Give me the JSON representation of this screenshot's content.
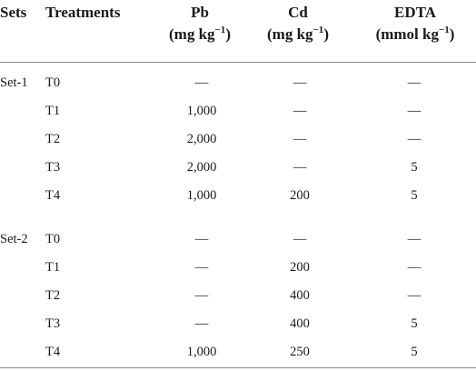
{
  "headers": {
    "sets": "Sets",
    "treatments": "Treatments",
    "pb": {
      "name": "Pb",
      "unit": "(mg kg",
      "exp": "−1",
      "close": ")"
    },
    "cd": {
      "name": "Cd",
      "unit": "(mg kg",
      "exp": "−1",
      "close": ")"
    },
    "edta": {
      "name": "EDTA",
      "unit": "(mmol kg",
      "exp": "−1",
      "close": ")"
    }
  },
  "groups": [
    {
      "set": "Set-1",
      "rows": [
        {
          "treatment": "T0",
          "pb": "—",
          "cd": "—",
          "edta": "—"
        },
        {
          "treatment": "T1",
          "pb": "1,000",
          "cd": "—",
          "edta": "—"
        },
        {
          "treatment": "T2",
          "pb": "2,000",
          "cd": "—",
          "edta": "—"
        },
        {
          "treatment": "T3",
          "pb": "2,000",
          "cd": "—",
          "edta": "5"
        },
        {
          "treatment": "T4",
          "pb": "1,000",
          "cd": "200",
          "edta": "5"
        }
      ]
    },
    {
      "set": "Set-2",
      "rows": [
        {
          "treatment": "T0",
          "pb": "—",
          "cd": "—",
          "edta": "—"
        },
        {
          "treatment": "T1",
          "pb": "—",
          "cd": "200",
          "edta": "—"
        },
        {
          "treatment": "T2",
          "pb": "—",
          "cd": "400",
          "edta": "—"
        },
        {
          "treatment": "T3",
          "pb": "—",
          "cd": "400",
          "edta": "5"
        },
        {
          "treatment": "T4",
          "pb": "1,000",
          "cd": "250",
          "edta": "5"
        }
      ]
    }
  ]
}
